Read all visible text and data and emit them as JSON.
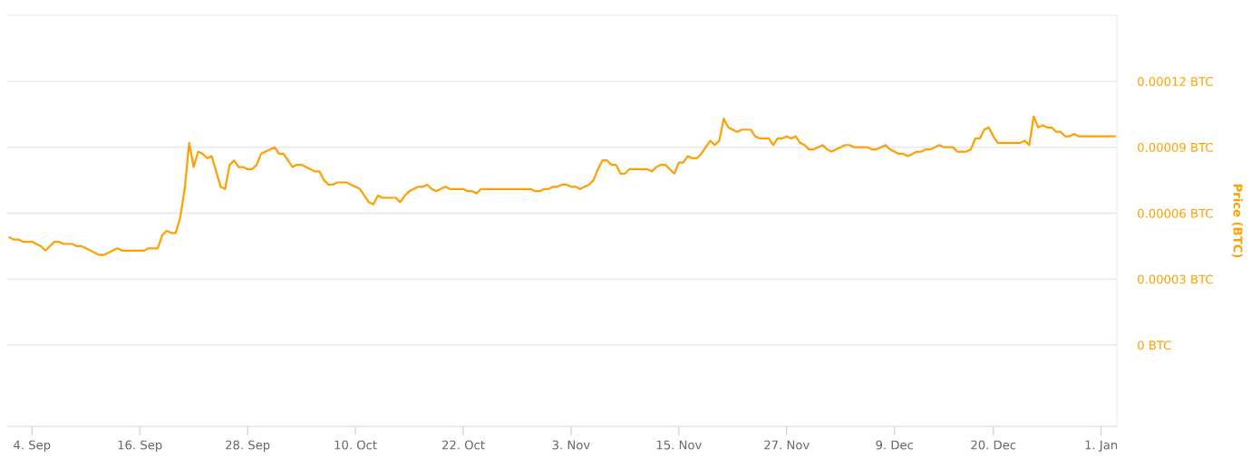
{
  "chart_data": {
    "type": "line",
    "ylabel": "Price (BTC)",
    "color": "#ffa000",
    "line_style": "solid",
    "grid": "y",
    "ylim": [
      -3.7e-05,
      0.00015
    ],
    "yticks": [
      {
        "value": 0,
        "label": "0 BTC"
      },
      {
        "value": 3e-05,
        "label": "0.00003 BTC"
      },
      {
        "value": 6e-05,
        "label": "0.00006 BTC"
      },
      {
        "value": 9e-05,
        "label": "0.00009 BTC"
      },
      {
        "value": 0.00012,
        "label": "0.00012 BTC"
      }
    ],
    "categories": [
      null,
      null,
      null,
      null,
      null,
      "4. Sep",
      null,
      null,
      null,
      null,
      null,
      null,
      null,
      null,
      null,
      null,
      null,
      null,
      null,
      null,
      null,
      null,
      null,
      null,
      null,
      null,
      null,
      null,
      null,
      "16. Sep",
      null,
      null,
      null,
      null,
      null,
      null,
      null,
      null,
      null,
      null,
      null,
      null,
      null,
      null,
      null,
      null,
      null,
      null,
      null,
      null,
      null,
      null,
      null,
      "28. Sep",
      null,
      null,
      null,
      null,
      null,
      null,
      null,
      null,
      null,
      null,
      null,
      null,
      null,
      null,
      null,
      null,
      null,
      null,
      null,
      null,
      null,
      null,
      null,
      "10. Oct",
      null,
      null,
      null,
      null,
      null,
      null,
      null,
      null,
      null,
      null,
      null,
      null,
      null,
      null,
      null,
      null,
      null,
      null,
      null,
      null,
      null,
      null,
      null,
      "22. Oct",
      null,
      null,
      null,
      null,
      null,
      null,
      null,
      null,
      null,
      null,
      null,
      null,
      null,
      null,
      null,
      null,
      null,
      null,
      null,
      null,
      null,
      null,
      null,
      "3. Nov",
      null,
      null,
      null,
      null,
      null,
      null,
      null,
      null,
      null,
      null,
      null,
      null,
      null,
      null,
      null,
      null,
      null,
      null,
      null,
      null,
      null,
      null,
      null,
      "15. Nov",
      null,
      null,
      null,
      null,
      null,
      null,
      null,
      null,
      null,
      null,
      null,
      null,
      null,
      null,
      null,
      null,
      null,
      null,
      null,
      null,
      null,
      null,
      null,
      "27. Nov",
      null,
      null,
      null,
      null,
      null,
      null,
      null,
      null,
      null,
      null,
      null,
      null,
      null,
      null,
      null,
      null,
      null,
      null,
      null,
      null,
      null,
      null,
      null,
      "9. Dec",
      null,
      null,
      null,
      null,
      null,
      null,
      null,
      null,
      null,
      null,
      null,
      null,
      null,
      null,
      null,
      null,
      null,
      null,
      null,
      null,
      null,
      "20. Dec",
      null,
      null,
      null,
      null,
      null,
      null,
      null,
      null,
      null,
      null,
      null,
      null,
      null,
      null,
      null,
      null,
      null,
      null,
      null,
      null,
      null,
      null,
      null,
      "1. Jan",
      null,
      null,
      null
    ],
    "values": [
      4.9e-05,
      4.8e-05,
      4.8e-05,
      4.7e-05,
      4.7e-05,
      4.7e-05,
      4.6e-05,
      4.5e-05,
      4.3e-05,
      4.5e-05,
      4.7e-05,
      4.7e-05,
      4.6e-05,
      4.6e-05,
      4.6e-05,
      4.5e-05,
      4.5e-05,
      4.4e-05,
      4.3e-05,
      4.2e-05,
      4.1e-05,
      4.1e-05,
      4.2e-05,
      4.3e-05,
      4.4e-05,
      4.3e-05,
      4.3e-05,
      4.3e-05,
      4.3e-05,
      4.3e-05,
      4.3e-05,
      4.4e-05,
      4.4e-05,
      4.4e-05,
      5e-05,
      5.2e-05,
      5.1e-05,
      5.1e-05,
      5.8e-05,
      7.1e-05,
      9.2e-05,
      8.1e-05,
      8.8e-05,
      8.7e-05,
      8.5e-05,
      8.6e-05,
      7.9e-05,
      7.2e-05,
      7.1e-05,
      8.2e-05,
      8.4e-05,
      8.1e-05,
      8.1e-05,
      8e-05,
      8e-05,
      8.2e-05,
      8.7e-05,
      8.8e-05,
      8.9e-05,
      9e-05,
      8.7e-05,
      8.7e-05,
      8.4e-05,
      8.1e-05,
      8.2e-05,
      8.2e-05,
      8.1e-05,
      8e-05,
      7.9e-05,
      7.9e-05,
      7.5e-05,
      7.3e-05,
      7.3e-05,
      7.4e-05,
      7.4e-05,
      7.4e-05,
      7.3e-05,
      7.2e-05,
      7.1e-05,
      6.8e-05,
      6.5e-05,
      6.4e-05,
      6.8e-05,
      6.7e-05,
      6.7e-05,
      6.7e-05,
      6.7e-05,
      6.5e-05,
      6.8e-05,
      7e-05,
      7.1e-05,
      7.2e-05,
      7.2e-05,
      7.3e-05,
      7.1e-05,
      7e-05,
      7.1e-05,
      7.2e-05,
      7.1e-05,
      7.1e-05,
      7.1e-05,
      7.1e-05,
      7e-05,
      7e-05,
      6.9e-05,
      7.1e-05,
      7.1e-05,
      7.1e-05,
      7.1e-05,
      7.1e-05,
      7.1e-05,
      7.1e-05,
      7.1e-05,
      7.1e-05,
      7.1e-05,
      7.1e-05,
      7.1e-05,
      7e-05,
      7e-05,
      7.1e-05,
      7.1e-05,
      7.2e-05,
      7.2e-05,
      7.3e-05,
      7.3e-05,
      7.2e-05,
      7.2e-05,
      7.1e-05,
      7.2e-05,
      7.3e-05,
      7.5e-05,
      8e-05,
      8.4e-05,
      8.4e-05,
      8.2e-05,
      8.2e-05,
      7.8e-05,
      7.8e-05,
      8e-05,
      8e-05,
      8e-05,
      8e-05,
      8e-05,
      7.9e-05,
      8.1e-05,
      8.2e-05,
      8.2e-05,
      8e-05,
      7.8e-05,
      8.3e-05,
      8.3e-05,
      8.6e-05,
      8.5e-05,
      8.5e-05,
      8.7e-05,
      9e-05,
      9.3e-05,
      9.1e-05,
      9.3e-05,
      0.000103,
      9.9e-05,
      9.8e-05,
      9.7e-05,
      9.8e-05,
      9.8e-05,
      9.8e-05,
      9.5e-05,
      9.4e-05,
      9.4e-05,
      9.4e-05,
      9.1e-05,
      9.4e-05,
      9.4e-05,
      9.5e-05,
      9.4e-05,
      9.5e-05,
      9.2e-05,
      9.1e-05,
      8.9e-05,
      8.9e-05,
      9e-05,
      9.1e-05,
      8.9e-05,
      8.8e-05,
      8.9e-05,
      9e-05,
      9.1e-05,
      9.1e-05,
      9e-05,
      9e-05,
      9e-05,
      9e-05,
      8.9e-05,
      8.9e-05,
      9e-05,
      9.1e-05,
      8.9e-05,
      8.8e-05,
      8.7e-05,
      8.7e-05,
      8.6e-05,
      8.7e-05,
      8.8e-05,
      8.8e-05,
      8.9e-05,
      8.9e-05,
      9e-05,
      9.1e-05,
      9e-05,
      9e-05,
      9e-05,
      8.8e-05,
      8.8e-05,
      8.8e-05,
      8.9e-05,
      9.4e-05,
      9.4e-05,
      9.8e-05,
      9.9e-05,
      9.5e-05,
      9.2e-05,
      9.2e-05,
      9.2e-05,
      9.2e-05,
      9.2e-05,
      9.2e-05,
      9.3e-05,
      9.1e-05,
      0.000104,
      9.9e-05,
      0.0001,
      9.9e-05,
      9.9e-05,
      9.7e-05,
      9.7e-05,
      9.5e-05,
      9.5e-05,
      9.6e-05,
      9.5e-05,
      9.5e-05,
      9.5e-05,
      9.5e-05,
      9.5e-05,
      9.5e-05,
      9.5e-05,
      9.5e-05,
      9.5e-05
    ]
  }
}
